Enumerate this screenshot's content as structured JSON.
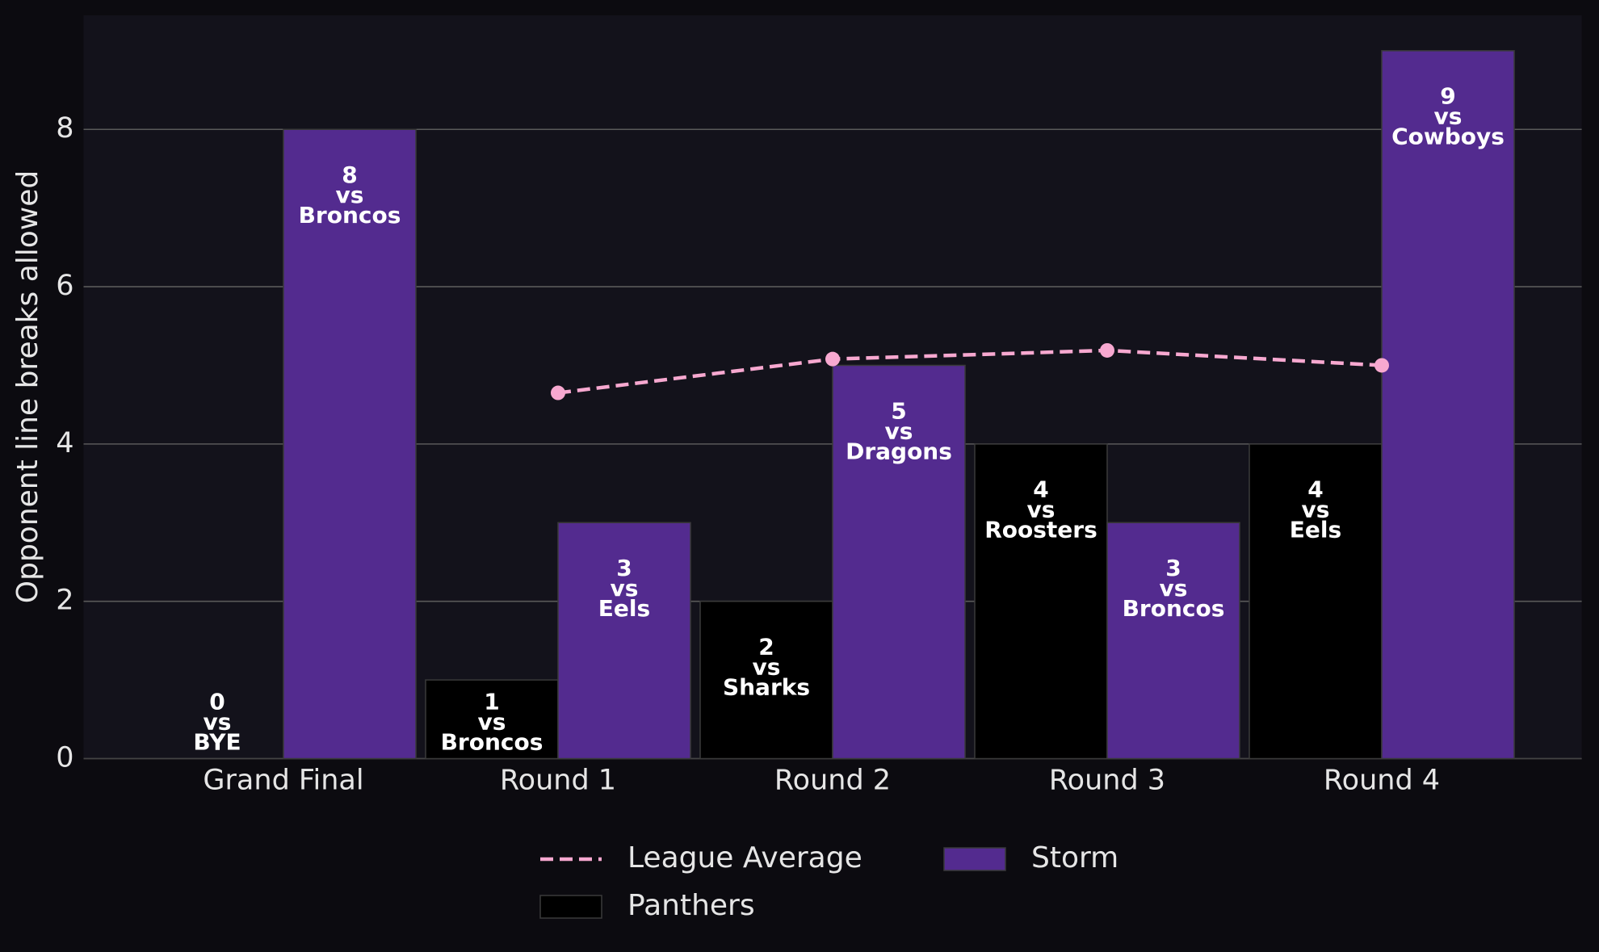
{
  "chart_data": {
    "type": "bar",
    "ylabel": "Opponent line breaks allowed",
    "categories": [
      "Grand Final",
      "Round 1",
      "Round 2",
      "Round 3",
      "Round 4"
    ],
    "ylim": [
      0,
      9.45
    ],
    "yticks": [
      0,
      2,
      4,
      6,
      8
    ],
    "grid": true,
    "legend": "bottom",
    "series": [
      {
        "name": "League Average",
        "type": "line",
        "color": "#f7a8d0",
        "dashed": true,
        "values": [
          null,
          4.65,
          5.08,
          5.19,
          5.0
        ]
      },
      {
        "name": "Panthers",
        "type": "bar",
        "color": "#000000",
        "values": [
          0,
          1,
          2,
          4,
          4
        ],
        "value_labels": [
          [
            "0",
            "vs",
            "BYE"
          ],
          [
            "1",
            "vs",
            "Broncos"
          ],
          [
            "2",
            "vs",
            "Sharks"
          ],
          [
            "4",
            "vs",
            "Roosters"
          ],
          [
            "4",
            "vs",
            "Eels"
          ]
        ]
      },
      {
        "name": "Storm",
        "type": "bar",
        "color": "#532b8f",
        "values": [
          8,
          3,
          5,
          3,
          9
        ],
        "value_labels": [
          [
            "8",
            "vs",
            "Broncos"
          ],
          [
            "3",
            "vs",
            "Eels"
          ],
          [
            "5",
            "vs",
            "Dragons"
          ],
          [
            "3",
            "vs",
            "Broncos"
          ],
          [
            "9",
            "vs",
            "Cowboys"
          ]
        ]
      }
    ]
  }
}
